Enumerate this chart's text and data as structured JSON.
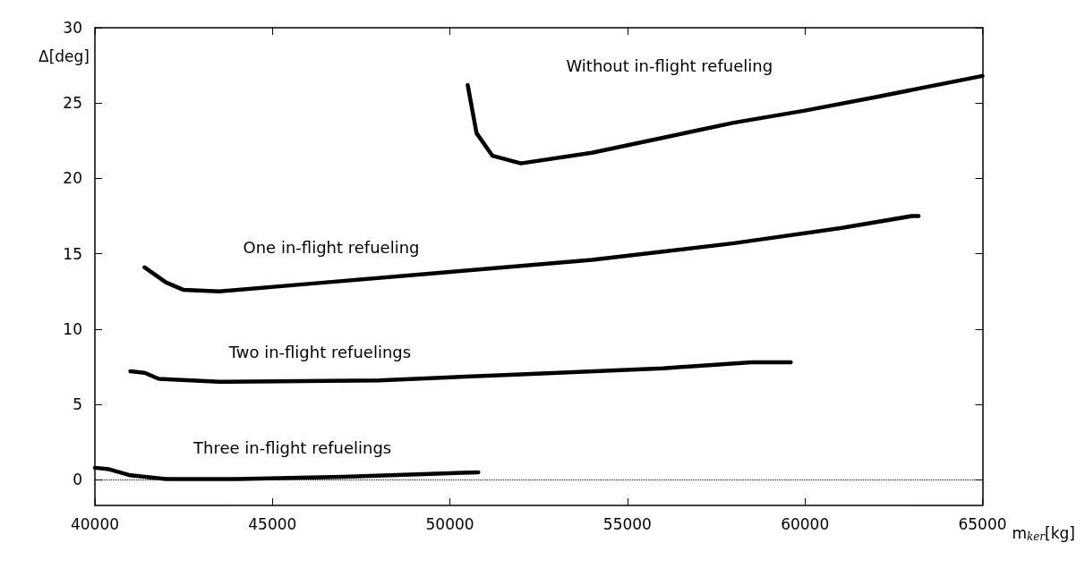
{
  "chart_data": {
    "type": "line",
    "xlabel": "m$_{ker}$[kg]",
    "ylabel": "Δ[deg]",
    "xlim": [
      40000,
      65000
    ],
    "xticks": [
      40000,
      45000,
      50000,
      55000,
      60000,
      65000
    ],
    "ylim": [
      -1.7,
      30
    ],
    "yticks": [
      0,
      5,
      10,
      15,
      20,
      25,
      30
    ],
    "grid": false,
    "marker": "none",
    "line_style": "solid",
    "series": [
      {
        "name": "Without in-flight refueling",
        "color": "#000000",
        "x": [
          50500,
          50750,
          51200,
          52000,
          54000,
          56000,
          58000,
          60000,
          62000,
          65000
        ],
        "values": [
          26.2,
          23,
          21.5,
          21,
          21.7,
          22.7,
          23.7,
          24.5,
          25.4,
          26.8
        ]
      },
      {
        "name": "One in-flight refueling",
        "color": "#000000",
        "x": [
          41400,
          42000,
          42500,
          43500,
          46000,
          50000,
          54000,
          58000,
          61000,
          63000,
          63200
        ],
        "values": [
          14.1,
          13.1,
          12.6,
          12.5,
          13,
          13.8,
          14.6,
          15.7,
          16.7,
          17.5,
          17.5
        ]
      },
      {
        "name": "Two in-flight refuelings",
        "color": "#000000",
        "x": [
          41000,
          41400,
          41800,
          43500,
          48000,
          52000,
          56000,
          58500,
          59600
        ],
        "values": [
          7.2,
          7.1,
          6.7,
          6.5,
          6.6,
          7,
          7.4,
          7.8,
          7.8
        ]
      },
      {
        "name": "Three in-flight refuelings",
        "color": "#000000",
        "x": [
          40000,
          40400,
          41000,
          42000,
          44000,
          47000,
          50800
        ],
        "values": [
          0.8,
          0.7,
          0.3,
          0.05,
          0.05,
          0.2,
          0.5
        ]
      }
    ],
    "ref_lines": [
      {
        "axis": "y",
        "value": 0,
        "line_style": "dotted",
        "color": "#000000"
      }
    ]
  }
}
